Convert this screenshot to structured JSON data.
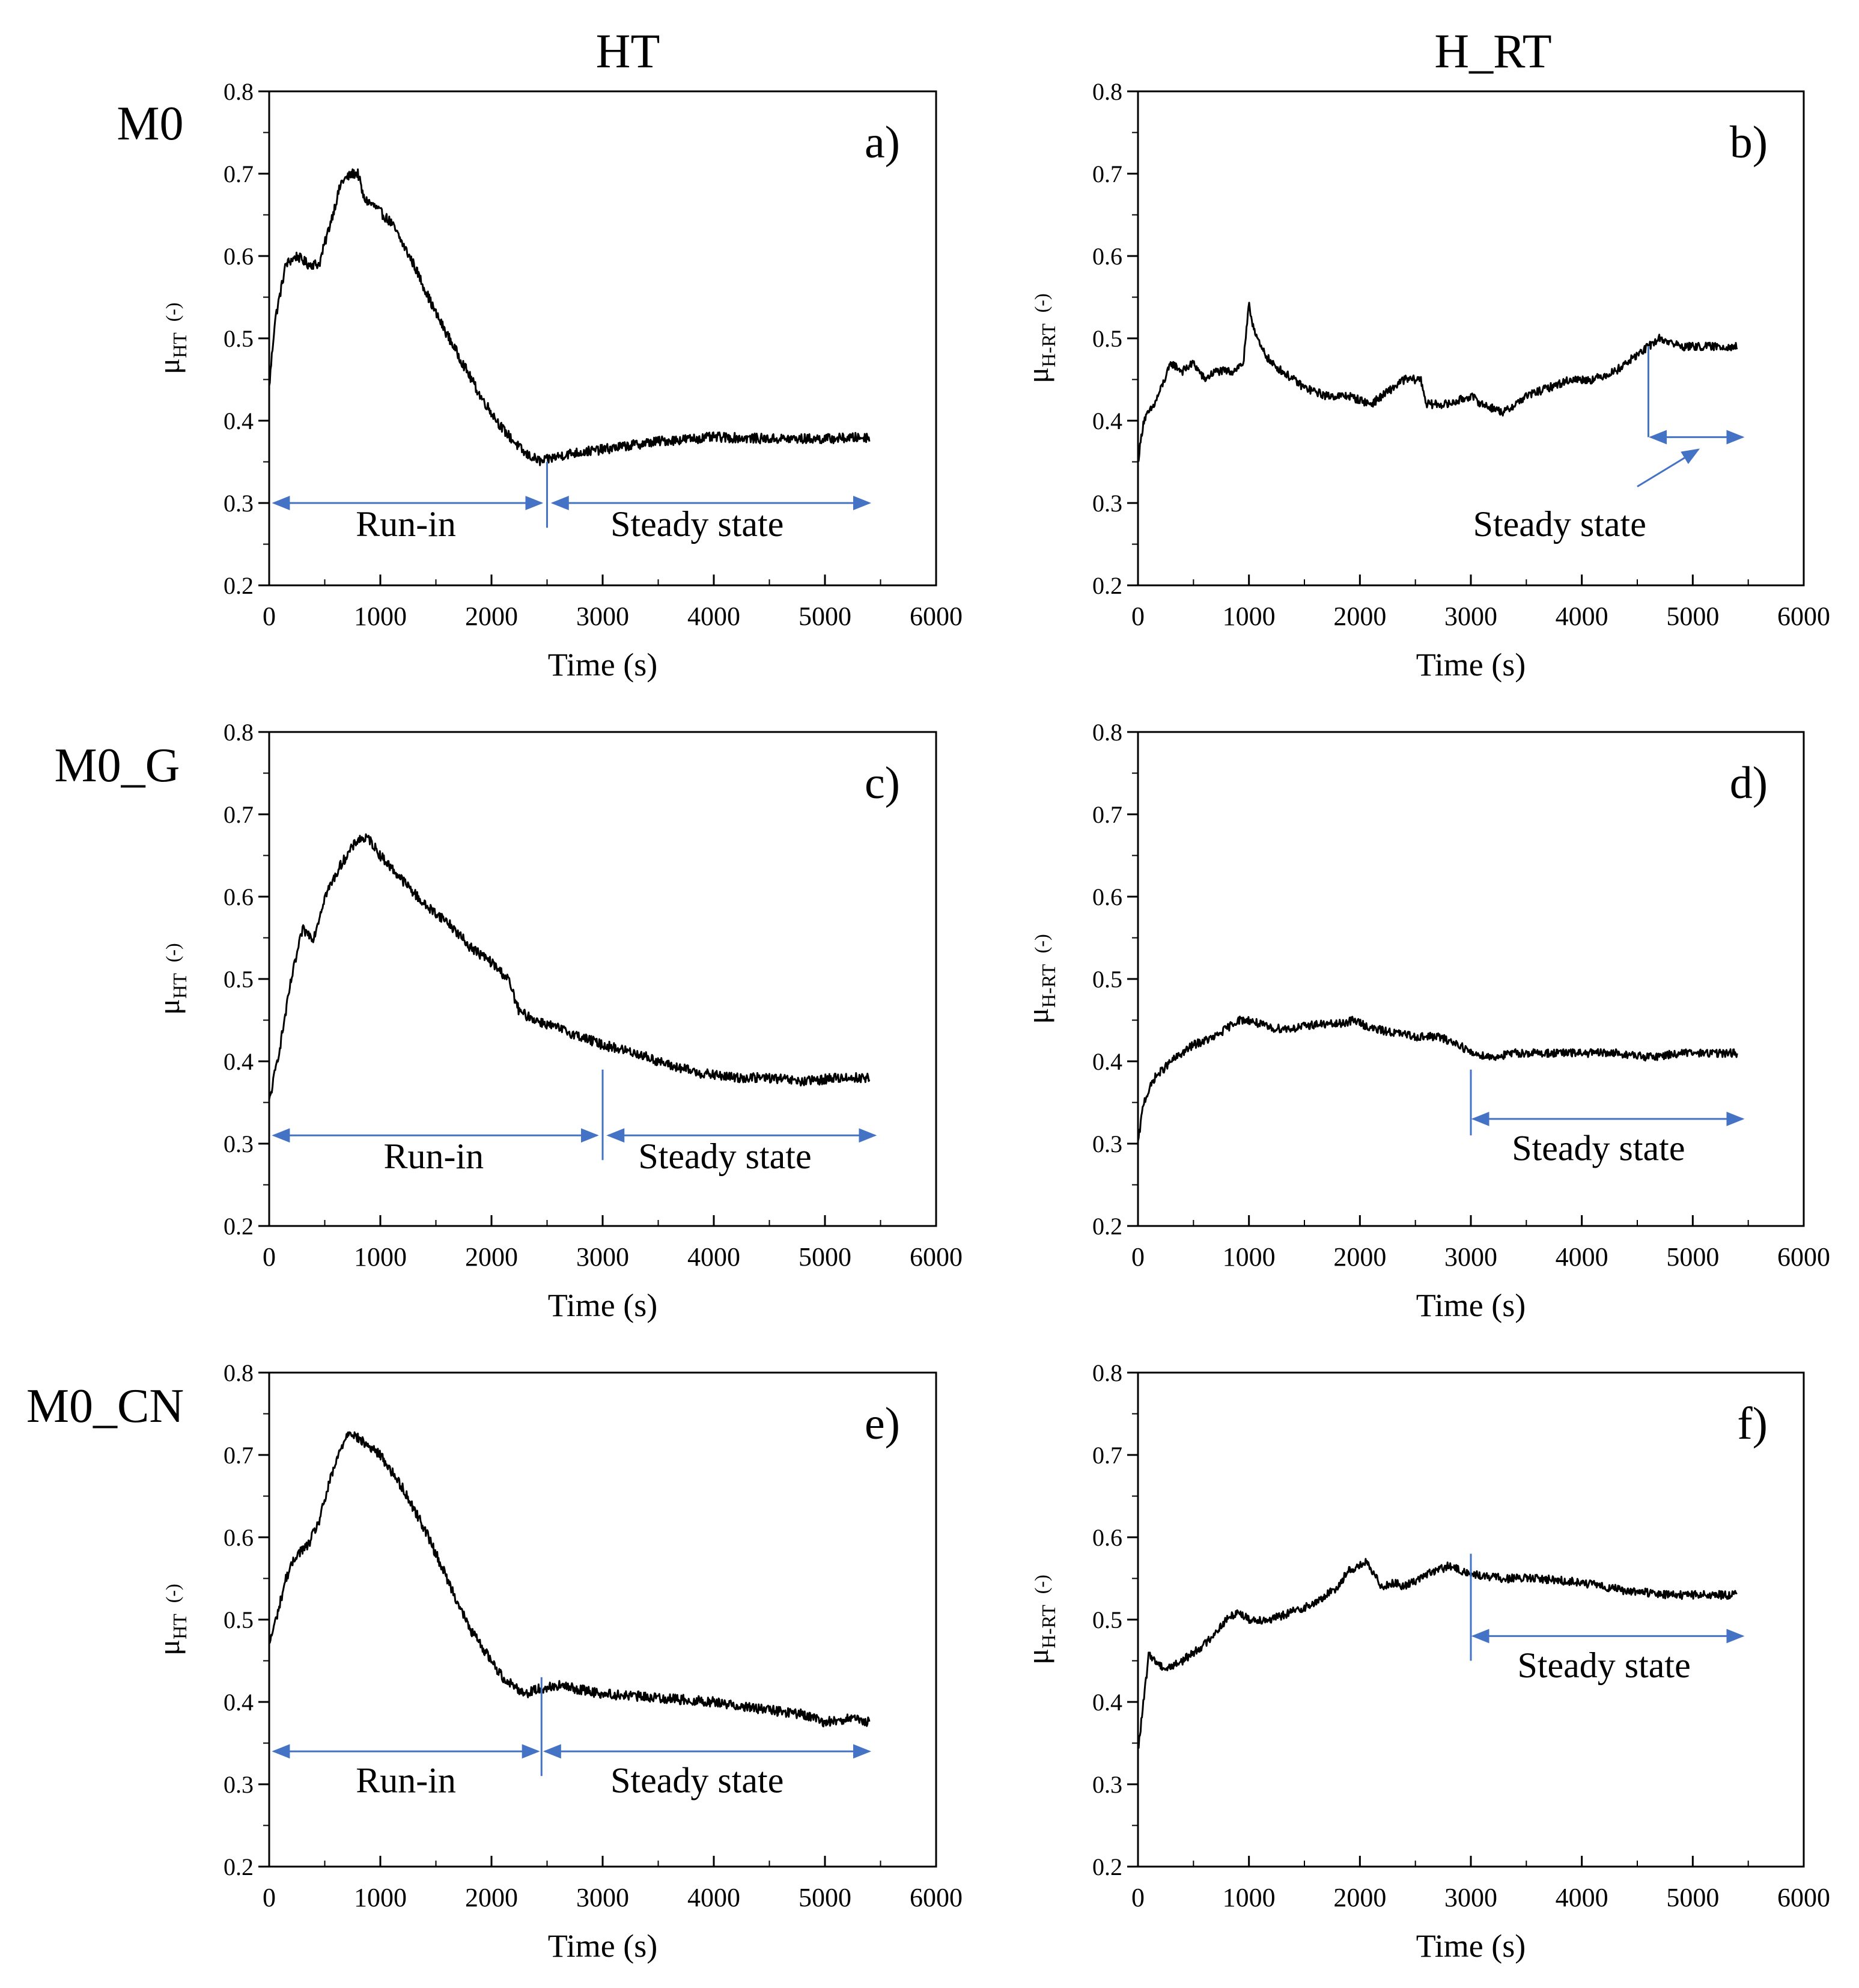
{
  "figure": {
    "column_titles": [
      "HT",
      "H_RT"
    ],
    "row_labels": [
      "M0",
      "M0_G",
      "M0_CN"
    ],
    "accent_color": "#4472C4",
    "line_color": "#000000"
  },
  "chart_data": [
    {
      "id": "a",
      "panel_label": "a)",
      "type": "line",
      "xlabel": "Time (s)",
      "ylabel_main": "μ",
      "ylabel_sub": "HT",
      "ylabel_unit": "(-)",
      "xlim": [
        0,
        6000
      ],
      "ylim": [
        0.2,
        0.8
      ],
      "xticks": [
        0,
        1000,
        2000,
        3000,
        4000,
        5000,
        6000
      ],
      "yticks": [
        0.2,
        0.3,
        0.4,
        0.5,
        0.6,
        0.7,
        0.8
      ],
      "ytick_labels": [
        "0.2",
        "0.3",
        "0.4",
        "0.5",
        "0.6",
        "0.7",
        "0.8"
      ],
      "noise": 0.006,
      "series": [
        {
          "name": "μ_HT",
          "x": [
            0,
            50,
            150,
            250,
            350,
            450,
            550,
            650,
            750,
            800,
            850,
            950,
            1100,
            1300,
            1500,
            1700,
            1900,
            2100,
            2300,
            2450,
            2550,
            2700,
            3000,
            3500,
            4000,
            4500,
            5000,
            5400
          ],
          "y": [
            0.44,
            0.52,
            0.59,
            0.6,
            0.59,
            0.59,
            0.64,
            0.69,
            0.7,
            0.7,
            0.67,
            0.66,
            0.64,
            0.59,
            0.53,
            0.48,
            0.43,
            0.39,
            0.36,
            0.35,
            0.355,
            0.36,
            0.365,
            0.375,
            0.38,
            0.378,
            0.378,
            0.38
          ]
        }
      ],
      "annotations": [
        {
          "kind": "divider",
          "x": 2500,
          "y_from": 0.27,
          "y_to": 0.35
        },
        {
          "kind": "arrow",
          "x_from": 40,
          "x_to": 2450,
          "y": 0.3,
          "label": "Run-in",
          "label_x": 1230,
          "label_y": 0.26
        },
        {
          "kind": "arrow",
          "x_from": 2550,
          "x_to": 5400,
          "y": 0.3,
          "label": "Steady state",
          "label_x": 3850,
          "label_y": 0.26
        }
      ]
    },
    {
      "id": "b",
      "panel_label": "b)",
      "type": "line",
      "xlabel": "Time (s)",
      "ylabel_main": "μ",
      "ylabel_sub": "H-RT",
      "ylabel_unit": "(-)",
      "xlim": [
        0,
        6000
      ],
      "ylim": [
        0.2,
        0.8
      ],
      "xticks": [
        0,
        1000,
        2000,
        3000,
        4000,
        5000,
        6000
      ],
      "yticks": [
        0.2,
        0.3,
        0.4,
        0.5,
        0.6,
        0.7,
        0.8
      ],
      "ytick_labels": [
        "0.2",
        "0.3",
        "0.4",
        "0.5",
        "0.6",
        "0.7",
        "0.8"
      ],
      "noise": 0.005,
      "series": [
        {
          "name": "μ_H-RT",
          "x": [
            0,
            50,
            150,
            300,
            400,
            500,
            600,
            700,
            850,
            950,
            1000,
            1030,
            1100,
            1200,
            1300,
            1500,
            1700,
            1900,
            2100,
            2200,
            2300,
            2400,
            2550,
            2600,
            2800,
            3000,
            3100,
            3300,
            3500,
            3700,
            3900,
            4100,
            4300,
            4500,
            4700,
            4900,
            5100,
            5300,
            5400
          ],
          "y": [
            0.35,
            0.4,
            0.42,
            0.47,
            0.46,
            0.47,
            0.45,
            0.46,
            0.46,
            0.47,
            0.54,
            0.52,
            0.49,
            0.47,
            0.46,
            0.44,
            0.43,
            0.43,
            0.42,
            0.43,
            0.44,
            0.45,
            0.45,
            0.42,
            0.42,
            0.43,
            0.42,
            0.41,
            0.43,
            0.44,
            0.45,
            0.45,
            0.46,
            0.48,
            0.5,
            0.49,
            0.49,
            0.49,
            0.49
          ]
        }
      ],
      "annotations": [
        {
          "kind": "divider",
          "x": 4600,
          "y_from": 0.38,
          "y_to": 0.49
        },
        {
          "kind": "arrow",
          "x_from": 4620,
          "x_to": 5450,
          "y": 0.38,
          "label": "Steady state",
          "label_x": 3800,
          "label_y": 0.26
        },
        {
          "kind": "pointer",
          "x_from": 4500,
          "y_from": 0.32,
          "x_to": 5050,
          "y_to": 0.365
        }
      ]
    },
    {
      "id": "c",
      "panel_label": "c)",
      "type": "line",
      "xlabel": "Time (s)",
      "ylabel_main": "μ",
      "ylabel_sub": "HT",
      "ylabel_unit": "(-)",
      "xlim": [
        0,
        6000
      ],
      "ylim": [
        0.2,
        0.8
      ],
      "xticks": [
        0,
        1000,
        2000,
        3000,
        4000,
        5000,
        6000
      ],
      "yticks": [
        0.2,
        0.3,
        0.4,
        0.5,
        0.6,
        0.7,
        0.8
      ],
      "ytick_labels": [
        "0.2",
        "0.3",
        "0.4",
        "0.5",
        "0.6",
        "0.7",
        "0.8"
      ],
      "noise": 0.006,
      "series": [
        {
          "name": "μ_HT",
          "x": [
            0,
            100,
            200,
            300,
            400,
            500,
            650,
            800,
            900,
            1000,
            1200,
            1400,
            1600,
            1800,
            2000,
            2150,
            2250,
            2400,
            2600,
            2800,
            3000,
            3300,
            3600,
            3900,
            4200,
            4500,
            4800,
            5100,
            5400
          ],
          "y": [
            0.35,
            0.42,
            0.5,
            0.56,
            0.55,
            0.6,
            0.64,
            0.67,
            0.67,
            0.65,
            0.62,
            0.59,
            0.57,
            0.54,
            0.52,
            0.5,
            0.46,
            0.45,
            0.44,
            0.43,
            0.42,
            0.41,
            0.395,
            0.385,
            0.38,
            0.38,
            0.375,
            0.38,
            0.38
          ]
        }
      ],
      "annotations": [
        {
          "kind": "divider",
          "x": 3000,
          "y_from": 0.28,
          "y_to": 0.39
        },
        {
          "kind": "arrow",
          "x_from": 40,
          "x_to": 2950,
          "y": 0.31,
          "label": "Run-in",
          "label_x": 1480,
          "label_y": 0.27
        },
        {
          "kind": "arrow",
          "x_from": 3050,
          "x_to": 5450,
          "y": 0.31,
          "label": "Steady state",
          "label_x": 4100,
          "label_y": 0.27
        }
      ]
    },
    {
      "id": "d",
      "panel_label": "d)",
      "type": "line",
      "xlabel": "Time (s)",
      "ylabel_main": "μ",
      "ylabel_sub": "H-RT",
      "ylabel_unit": "(-)",
      "xlim": [
        0,
        6000
      ],
      "ylim": [
        0.2,
        0.8
      ],
      "xticks": [
        0,
        1000,
        2000,
        3000,
        4000,
        5000,
        6000
      ],
      "yticks": [
        0.2,
        0.3,
        0.4,
        0.5,
        0.6,
        0.7,
        0.8
      ],
      "ytick_labels": [
        "0.2",
        "0.3",
        "0.4",
        "0.5",
        "0.6",
        "0.7",
        "0.8"
      ],
      "noise": 0.005,
      "series": [
        {
          "name": "μ_H-RT",
          "x": [
            0,
            50,
            150,
            300,
            500,
            700,
            900,
            1000,
            1200,
            1400,
            1600,
            1800,
            1950,
            2100,
            2300,
            2500,
            2700,
            2900,
            3000,
            3200,
            3400,
            3700,
            4000,
            4300,
            4600,
            4900,
            5200,
            5400
          ],
          "y": [
            0.3,
            0.35,
            0.38,
            0.4,
            0.42,
            0.43,
            0.45,
            0.45,
            0.44,
            0.44,
            0.445,
            0.445,
            0.45,
            0.44,
            0.435,
            0.43,
            0.43,
            0.42,
            0.41,
            0.405,
            0.41,
            0.41,
            0.41,
            0.41,
            0.405,
            0.41,
            0.41,
            0.41
          ]
        }
      ],
      "annotations": [
        {
          "kind": "divider",
          "x": 3000,
          "y_from": 0.31,
          "y_to": 0.39
        },
        {
          "kind": "arrow",
          "x_from": 3020,
          "x_to": 5450,
          "y": 0.33,
          "label": "Steady state",
          "label_x": 4150,
          "label_y": 0.28
        }
      ]
    },
    {
      "id": "e",
      "panel_label": "e)",
      "type": "line",
      "xlabel": "Time (s)",
      "ylabel_main": "μ",
      "ylabel_sub": "HT",
      "ylabel_unit": "(-)",
      "xlim": [
        0,
        6000
      ],
      "ylim": [
        0.2,
        0.8
      ],
      "xticks": [
        0,
        1000,
        2000,
        3000,
        4000,
        5000,
        6000
      ],
      "yticks": [
        0.2,
        0.3,
        0.4,
        0.5,
        0.6,
        0.7,
        0.8
      ],
      "ytick_labels": [
        "0.2",
        "0.3",
        "0.4",
        "0.5",
        "0.6",
        "0.7",
        "0.8"
      ],
      "noise": 0.006,
      "series": [
        {
          "name": "μ_HT",
          "x": [
            0,
            80,
            150,
            250,
            350,
            450,
            550,
            650,
            720,
            800,
            900,
            1000,
            1200,
            1400,
            1600,
            1800,
            1900,
            2000,
            2100,
            2200,
            2300,
            2400,
            2600,
            3000,
            3500,
            4000,
            4500,
            4800,
            5000,
            5200,
            5400
          ],
          "y": [
            0.47,
            0.51,
            0.55,
            0.58,
            0.59,
            0.62,
            0.67,
            0.71,
            0.73,
            0.72,
            0.71,
            0.7,
            0.66,
            0.61,
            0.55,
            0.49,
            0.47,
            0.45,
            0.43,
            0.42,
            0.41,
            0.415,
            0.42,
            0.41,
            0.405,
            0.4,
            0.39,
            0.385,
            0.375,
            0.38,
            0.375
          ]
        }
      ],
      "annotations": [
        {
          "kind": "divider",
          "x": 2450,
          "y_from": 0.31,
          "y_to": 0.43
        },
        {
          "kind": "arrow",
          "x_from": 40,
          "x_to": 2420,
          "y": 0.34,
          "label": "Run-in",
          "label_x": 1230,
          "label_y": 0.29
        },
        {
          "kind": "arrow",
          "x_from": 2480,
          "x_to": 5400,
          "y": 0.34,
          "label": "Steady state",
          "label_x": 3850,
          "label_y": 0.29
        }
      ]
    },
    {
      "id": "f",
      "panel_label": "f)",
      "type": "line",
      "xlabel": "Time (s)",
      "ylabel_main": "μ",
      "ylabel_sub": "H-RT",
      "ylabel_unit": "(-)",
      "xlim": [
        0,
        6000
      ],
      "ylim": [
        0.2,
        0.8
      ],
      "xticks": [
        0,
        1000,
        2000,
        3000,
        4000,
        5000,
        6000
      ],
      "yticks": [
        0.2,
        0.3,
        0.4,
        0.5,
        0.6,
        0.7,
        0.8
      ],
      "ytick_labels": [
        "0.2",
        "0.3",
        "0.4",
        "0.5",
        "0.6",
        "0.7",
        "0.8"
      ],
      "noise": 0.005,
      "series": [
        {
          "name": "μ_H-RT",
          "x": [
            0,
            50,
            100,
            150,
            250,
            400,
            600,
            800,
            900,
            1000,
            1200,
            1400,
            1600,
            1800,
            1900,
            2000,
            2050,
            2100,
            2200,
            2300,
            2400,
            2600,
            2800,
            3000,
            3300,
            3600,
            4000,
            4400,
            4800,
            5200,
            5400
          ],
          "y": [
            0.34,
            0.4,
            0.46,
            0.45,
            0.44,
            0.45,
            0.47,
            0.5,
            0.51,
            0.5,
            0.5,
            0.51,
            0.52,
            0.54,
            0.56,
            0.565,
            0.57,
            0.56,
            0.54,
            0.545,
            0.54,
            0.555,
            0.565,
            0.555,
            0.55,
            0.55,
            0.545,
            0.535,
            0.53,
            0.53,
            0.53
          ]
        }
      ],
      "annotations": [
        {
          "kind": "divider",
          "x": 3000,
          "y_from": 0.45,
          "y_to": 0.58
        },
        {
          "kind": "arrow",
          "x_from": 3020,
          "x_to": 5450,
          "y": 0.48,
          "label": "Steady state",
          "label_x": 4200,
          "label_y": 0.43
        }
      ]
    }
  ]
}
